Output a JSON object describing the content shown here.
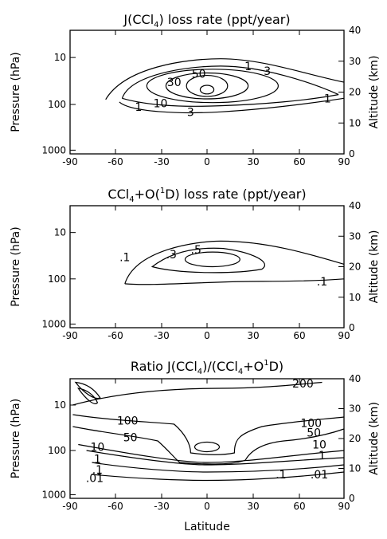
{
  "figure": {
    "x_axis_title": "Latitude"
  },
  "chart_data": [
    {
      "type": "contour",
      "title": [
        "J(CCl",
        "4",
        ") loss rate (ppt/year)"
      ],
      "xlabel": "Latitude",
      "ylabel_left": "Pressure (hPa)",
      "ylabel_right": "Altitude (km)",
      "xlim": [
        -90,
        90
      ],
      "x_ticks": [
        "-90",
        "-60",
        "-30",
        "0",
        "30",
        "60",
        "90"
      ],
      "y_left_ticks": [
        "10",
        "100",
        "1000"
      ],
      "y_right_ticks": [
        "0",
        "10",
        "20",
        "30",
        "40"
      ],
      "contour_levels": [
        "1",
        "3",
        "10",
        "30",
        "50",
        "1",
        "3",
        "1"
      ]
    },
    {
      "type": "contour",
      "title": [
        "CCl",
        "4",
        "+O(",
        "1",
        "D) loss rate (ppt/year)"
      ],
      "xlabel": "Latitude",
      "ylabel_left": "Pressure (hPa)",
      "ylabel_right": "Altitude (km)",
      "xlim": [
        -90,
        90
      ],
      "x_ticks": [
        "-90",
        "-60",
        "-30",
        "0",
        "30",
        "60",
        "90"
      ],
      "y_left_ticks": [
        "10",
        "100",
        "1000"
      ],
      "y_right_ticks": [
        "0",
        "10",
        "20",
        "30",
        "40"
      ],
      "contour_levels": [
        ".1",
        ".3",
        ".5",
        ".1"
      ]
    },
    {
      "type": "contour",
      "title": [
        "Ratio   J(CCl",
        "4",
        ")/(CCl",
        "4",
        "+O",
        "1",
        "D)"
      ],
      "xlabel": "Latitude",
      "ylabel_left": "Pressure (hPa)",
      "ylabel_right": "Altitude (km)",
      "xlim": [
        -90,
        90
      ],
      "x_ticks": [
        "-90",
        "-60",
        "-30",
        "0",
        "30",
        "60",
        "90"
      ],
      "y_left_ticks": [
        "10",
        "100",
        "1000"
      ],
      "y_right_ticks": [
        "0",
        "10",
        "20",
        "30",
        "40"
      ],
      "contour_levels": [
        "200",
        "100",
        "50",
        "10",
        "1",
        ".1",
        ".01",
        "100",
        "50",
        "10",
        "1",
        ".1",
        ".01"
      ]
    }
  ]
}
